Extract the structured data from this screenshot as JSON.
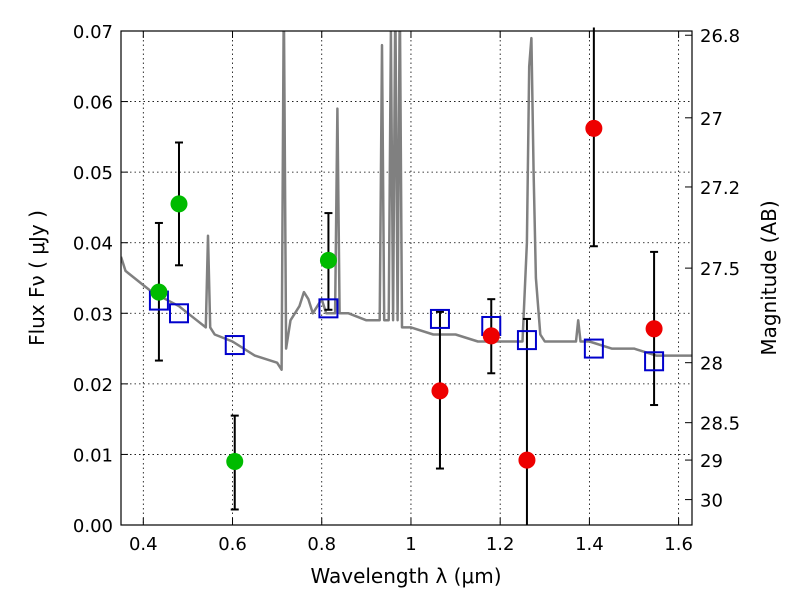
{
  "chart_data": {
    "type": "scatter",
    "xlabel": "Wavelength  λ (μm)",
    "ylabel": "Flux  Fν  ( μJy )",
    "ylabel_right": "Magnitude (AB)",
    "xlim": [
      0.35,
      1.63
    ],
    "ylim": [
      0.0,
      0.07
    ],
    "grid": true,
    "x_ticks": [
      0.4,
      0.6,
      0.8,
      1.0,
      1.2,
      1.4,
      1.6
    ],
    "x_tick_labels": [
      "0.4",
      "0.6",
      "0.8",
      "1",
      "1.2",
      "1.4",
      "1.6"
    ],
    "y_ticks": [
      0.0,
      0.01,
      0.02,
      0.03,
      0.04,
      0.05,
      0.06,
      0.07
    ],
    "y_tick_labels": [
      "0.00",
      "0.01",
      "0.02",
      "0.03",
      "0.04",
      "0.05",
      "0.06",
      "0.07"
    ],
    "right_ticks": [
      {
        "label": "26.8",
        "flux": 0.0694
      },
      {
        "label": "27",
        "flux": 0.0577
      },
      {
        "label": "27.2",
        "flux": 0.0479
      },
      {
        "label": "27.5",
        "flux": 0.0364
      },
      {
        "label": "28",
        "flux": 0.023
      },
      {
        "label": "28.5",
        "flux": 0.0145
      },
      {
        "label": "29",
        "flux": 0.0092
      },
      {
        "label": "30",
        "flux": 0.0036
      }
    ],
    "colors": {
      "model": "#808080",
      "model_photometry": "#0000cc",
      "detection": "#00bb00",
      "upper": "#ee0000",
      "errorbar": "#000000"
    },
    "series": [
      {
        "name": "model_spectrum",
        "kind": "line",
        "x": [
          0.35,
          0.36,
          0.38,
          0.4,
          0.42,
          0.45,
          0.48,
          0.5,
          0.52,
          0.54,
          0.545,
          0.55,
          0.56,
          0.6,
          0.65,
          0.7,
          0.71,
          0.715,
          0.72,
          0.73,
          0.75,
          0.76,
          0.77,
          0.78,
          0.79,
          0.8,
          0.81,
          0.83,
          0.835,
          0.84,
          0.86,
          0.9,
          0.93,
          0.935,
          0.94,
          0.95,
          0.955,
          0.96,
          0.965,
          0.97,
          0.975,
          0.98,
          1.0,
          1.05,
          1.1,
          1.15,
          1.2,
          1.22,
          1.25,
          1.26,
          1.265,
          1.27,
          1.275,
          1.28,
          1.29,
          1.3,
          1.31,
          1.35,
          1.37,
          1.375,
          1.38,
          1.4,
          1.45,
          1.5,
          1.55,
          1.6,
          1.63
        ],
        "y": [
          0.038,
          0.036,
          0.035,
          0.034,
          0.033,
          0.032,
          0.031,
          0.03,
          0.029,
          0.028,
          0.041,
          0.028,
          0.027,
          0.026,
          0.024,
          0.023,
          0.022,
          0.075,
          0.025,
          0.029,
          0.031,
          0.033,
          0.032,
          0.03,
          0.031,
          0.032,
          0.03,
          0.03,
          0.059,
          0.03,
          0.03,
          0.029,
          0.029,
          0.068,
          0.029,
          0.029,
          0.07,
          0.029,
          0.075,
          0.029,
          0.075,
          0.028,
          0.028,
          0.027,
          0.027,
          0.026,
          0.026,
          0.026,
          0.026,
          0.04,
          0.065,
          0.069,
          0.05,
          0.035,
          0.027,
          0.026,
          0.026,
          0.026,
          0.026,
          0.029,
          0.026,
          0.026,
          0.025,
          0.025,
          0.024,
          0.024,
          0.024
        ]
      },
      {
        "name": "model_photometry",
        "kind": "square",
        "x": [
          0.435,
          0.48,
          0.605,
          0.815,
          1.065,
          1.18,
          1.26,
          1.41,
          1.545
        ],
        "y": [
          0.0318,
          0.03,
          0.0255,
          0.0307,
          0.0292,
          0.0282,
          0.0262,
          0.025,
          0.0232
        ]
      },
      {
        "name": "detections",
        "kind": "circle",
        "x": [
          0.435,
          0.48,
          0.605,
          0.815
        ],
        "y": [
          0.033,
          0.0455,
          0.009,
          0.0375
        ],
        "err_low": [
          0.0233,
          0.0368,
          0.0022,
          0.0305
        ],
        "err_high": [
          0.0428,
          0.0542,
          0.0155,
          0.0442
        ]
      },
      {
        "name": "upper_limits",
        "kind": "circle",
        "x": [
          1.065,
          1.18,
          1.26,
          1.41,
          1.545
        ],
        "y": [
          0.019,
          0.0268,
          0.0092,
          0.0562,
          0.0278
        ],
        "err_low": [
          0.008,
          0.0215,
          0.0,
          0.0395,
          0.017
        ],
        "err_high": [
          0.0302,
          0.032,
          0.0292,
          0.0705,
          0.0387
        ]
      }
    ]
  }
}
